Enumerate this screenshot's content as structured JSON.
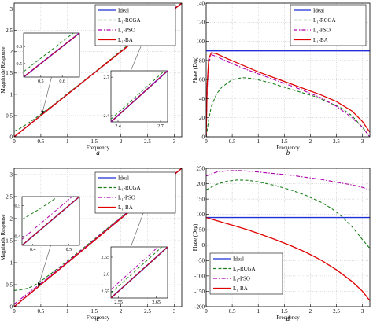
{
  "chart_data": [
    {
      "id": "a",
      "type": "line",
      "panel_label": "a",
      "xlabel": "Frequency",
      "ylabel": "Magnitude Response",
      "xlim": [
        0,
        3.1416
      ],
      "ylim": [
        0,
        3.1416
      ],
      "xticks": [
        0,
        0.5,
        1,
        1.5,
        2,
        2.5,
        3
      ],
      "xtick_labels": [
        "0",
        "0.5",
        "1",
        "1.5",
        "2",
        "2.5",
        "3"
      ],
      "yticks": [
        0,
        0.5,
        1,
        1.5,
        2,
        2.5,
        3
      ],
      "ytick_labels": [
        "0",
        "0.5",
        "1",
        "1.5",
        "2",
        "2.5",
        "3"
      ],
      "grid": true,
      "legend": {
        "position": "top-right",
        "entries": [
          {
            "label": "Ideal",
            "color": "#1f2fd6",
            "dash": "solid"
          },
          {
            "label": "L₁-RCGA",
            "color": "#1a7f1a",
            "dash": "dashed"
          },
          {
            "label": "L₁-PSO",
            "color": "#b000b0",
            "dash": "dashdot"
          },
          {
            "label": "L₁-BA",
            "color": "#e00000",
            "dash": "solid"
          }
        ]
      },
      "series": [
        {
          "name": "Ideal",
          "color": "#1f2fd6",
          "dash": "solid",
          "x": [
            0,
            3.1416
          ],
          "y": [
            0,
            3.1416
          ]
        },
        {
          "name": "L₁-RCGA",
          "color": "#1a7f1a",
          "dash": "dashed",
          "x": [
            0,
            0.1,
            0.3,
            0.5,
            0.8,
            1.2,
            1.6,
            2.0,
            2.4,
            2.8,
            3.0,
            3.1416
          ],
          "y": [
            0.13,
            0.19,
            0.35,
            0.53,
            0.82,
            1.21,
            1.61,
            2.02,
            2.42,
            2.81,
            3.02,
            3.13
          ]
        },
        {
          "name": "L₁-PSO",
          "color": "#b000b0",
          "dash": "dashdot",
          "x": [
            0,
            0.3,
            0.6,
            1.0,
            1.5,
            2.0,
            2.5,
            3.0,
            3.1416
          ],
          "y": [
            0,
            0.3,
            0.6,
            1.0,
            1.5,
            2.0,
            2.51,
            3.01,
            3.14
          ]
        },
        {
          "name": "L₁-BA",
          "color": "#e00000",
          "dash": "solid",
          "x": [
            0,
            3.1416
          ],
          "y": [
            0,
            3.1416
          ]
        }
      ],
      "insets": [
        {
          "xlim": [
            0.42,
            0.68
          ],
          "ylim": [
            0.42,
            0.68
          ],
          "xticks": [
            0.5,
            0.6
          ],
          "xtick_labels": [
            "0.5",
            "0.6"
          ],
          "yticks": [
            0.5,
            0.6
          ],
          "ytick_labels": [
            "0.5",
            "0.6"
          ],
          "rcga": {
            "x": [
              0.42,
              0.68
            ],
            "y": [
              0.452,
              0.708
            ]
          }
        },
        {
          "xlim": [
            2.35,
            2.75
          ],
          "ylim": [
            2.35,
            2.75
          ],
          "xticks": [
            2.4,
            2.7
          ],
          "xtick_labels": [
            "2.4",
            "2.7"
          ],
          "yticks": [
            2.4,
            2.7
          ],
          "ytick_labels": [
            "2.4",
            "2.7"
          ],
          "rcga": {
            "x": [
              2.35,
              2.75
            ],
            "y": [
              2.372,
              2.772
            ]
          }
        }
      ],
      "arrows": [
        {
          "from_inset": 0,
          "to": [
            0.52,
            0.52
          ]
        },
        {
          "from_inset": 1,
          "to": [
            2.5,
            2.5
          ]
        }
      ]
    },
    {
      "id": "b",
      "type": "line",
      "panel_label": "b",
      "xlabel": "Frequency",
      "ylabel": "Phase (Deg)",
      "xlim": [
        0,
        3.1416
      ],
      "ylim": [
        0,
        140
      ],
      "xticks": [
        0,
        0.5,
        1,
        1.5,
        2,
        2.5,
        3
      ],
      "xtick_labels": [
        "0",
        "0.5",
        "1",
        "1.5",
        "2",
        "2.5",
        "3"
      ],
      "yticks": [
        0,
        20,
        40,
        60,
        80,
        100,
        120,
        140
      ],
      "ytick_labels": [
        "0",
        "20",
        "40",
        "60",
        "80",
        "100",
        "120",
        "140"
      ],
      "grid": true,
      "legend": {
        "position": "top-right",
        "entries": [
          {
            "label": "Ideal",
            "color": "#1f2fd6",
            "dash": "solid"
          },
          {
            "label": "L₁-RCGA",
            "color": "#1a7f1a",
            "dash": "dashed"
          },
          {
            "label": "L₁-PSO",
            "color": "#b000b0",
            "dash": "dashdot"
          },
          {
            "label": "L₁-BA",
            "color": "#e00000",
            "dash": "solid"
          }
        ]
      },
      "series": [
        {
          "name": "Ideal",
          "color": "#1f2fd6",
          "dash": "solid",
          "x": [
            0,
            3.1416
          ],
          "y": [
            90,
            90
          ]
        },
        {
          "name": "L₁-RCGA",
          "color": "#1a7f1a",
          "dash": "dashed",
          "x": [
            0.0,
            0.05,
            0.1,
            0.2,
            0.3,
            0.5,
            0.7,
            0.9,
            1.2,
            1.5,
            1.8,
            2.1,
            2.4,
            2.6,
            2.8,
            3.0,
            3.14
          ],
          "y": [
            0,
            18,
            32,
            45,
            52,
            60,
            62,
            61,
            57,
            52,
            47,
            42,
            35,
            30,
            22,
            10,
            0
          ]
        },
        {
          "name": "L₁-PSO",
          "color": "#b000b0",
          "dash": "dashdot",
          "x": [
            0.0,
            0.02,
            0.05,
            0.1,
            0.2,
            0.4,
            0.7,
            1.0,
            1.4,
            1.8,
            2.2,
            2.5,
            2.8,
            3.0,
            3.14
          ],
          "y": [
            0,
            50,
            78,
            86,
            84,
            79,
            72,
            66,
            58,
            50,
            41,
            32,
            20,
            10,
            0
          ]
        },
        {
          "name": "L₁-BA",
          "color": "#e00000",
          "dash": "solid",
          "x": [
            0.0,
            0.02,
            0.05,
            0.1,
            0.2,
            0.4,
            0.7,
            1.0,
            1.4,
            1.8,
            2.2,
            2.5,
            2.8,
            3.0,
            3.14
          ],
          "y": [
            0,
            55,
            82,
            88,
            87,
            82,
            75,
            68,
            60,
            52,
            44,
            37,
            27,
            16,
            5
          ]
        }
      ]
    },
    {
      "id": "c",
      "type": "line",
      "panel_label": "c",
      "xlabel": "Frequency",
      "ylabel": "Magnitude Response",
      "xlim": [
        0,
        3.1416
      ],
      "ylim": [
        0,
        3.1416
      ],
      "xticks": [
        0,
        0.5,
        1,
        1.5,
        2,
        2.5,
        3
      ],
      "xtick_labels": [
        "0",
        "0.5",
        "1",
        "1.5",
        "2",
        "2.5",
        "3"
      ],
      "yticks": [
        0,
        0.5,
        1,
        1.5,
        2,
        2.5,
        3
      ],
      "ytick_labels": [
        "0",
        "0.5",
        "1",
        "1.5",
        "2",
        "2.5",
        "3"
      ],
      "grid": true,
      "legend": {
        "position": "top-right",
        "entries": [
          {
            "label": "Ideal",
            "color": "#1f2fd6",
            "dash": "solid"
          },
          {
            "label": "L₁-RCGA",
            "color": "#1a7f1a",
            "dash": "dashed"
          },
          {
            "label": "L₁-PSO",
            "color": "#b000b0",
            "dash": "dashdot"
          },
          {
            "label": "L₁-BA",
            "color": "#e00000",
            "dash": "solid"
          }
        ]
      },
      "series": [
        {
          "name": "Ideal",
          "color": "#1f2fd6",
          "dash": "solid",
          "x": [
            0,
            3.1416
          ],
          "y": [
            0,
            3.1416
          ]
        },
        {
          "name": "L₁-RCGA",
          "color": "#1a7f1a",
          "dash": "dashed",
          "x": [
            0,
            0.1,
            0.2,
            0.3,
            0.4,
            0.5,
            0.7,
            1.0,
            1.5,
            2.0,
            2.5,
            3.0,
            3.1416
          ],
          "y": [
            0.37,
            0.38,
            0.4,
            0.44,
            0.5,
            0.58,
            0.76,
            1.04,
            1.53,
            2.03,
            2.52,
            3.01,
            3.14
          ]
        },
        {
          "name": "L₁-PSO",
          "color": "#b000b0",
          "dash": "dashdot",
          "x": [
            0,
            0.5,
            1.0,
            1.5,
            2.0,
            2.5,
            3.0,
            3.1416
          ],
          "y": [
            0.06,
            0.53,
            1.02,
            1.52,
            2.02,
            2.52,
            3.01,
            3.14
          ]
        },
        {
          "name": "L₁-BA",
          "color": "#e00000",
          "dash": "solid",
          "x": [
            0,
            3.1416
          ],
          "y": [
            0,
            3.1416
          ]
        }
      ],
      "insets": [
        {
          "xlim": [
            0.37,
            0.53
          ],
          "ylim": [
            0.37,
            0.53
          ],
          "xticks": [
            0.4,
            0.5
          ],
          "xtick_labels": [
            "0.4",
            "0.5"
          ],
          "yticks": [
            0.4,
            0.5
          ],
          "ytick_labels": [
            "0.4",
            "0.5"
          ],
          "rcga": {
            "x": [
              0.37,
              0.42,
              0.47,
              0.53
            ],
            "y": [
              0.455,
              0.49,
              0.53,
              0.575
            ]
          },
          "pso": {
            "x": [
              0.37,
              0.53
            ],
            "y": [
              0.39,
              0.55
            ]
          }
        },
        {
          "xlim": [
            2.53,
            2.68
          ],
          "ylim": [
            2.53,
            2.68
          ],
          "xticks": [
            2.55,
            2.65
          ],
          "xtick_labels": [
            "2.55",
            "2.65"
          ],
          "yticks": [
            2.55,
            2.6,
            2.65
          ],
          "ytick_labels": [
            "2.55",
            "2.6",
            "2.65"
          ],
          "rcga": {
            "x": [
              2.53,
              2.68
            ],
            "y": [
              2.545,
              2.695
            ]
          },
          "pso": {
            "x": [
              2.53,
              2.68
            ],
            "y": [
              2.555,
              2.705
            ]
          }
        }
      ],
      "arrows": [
        {
          "from_inset": 0,
          "to": [
            0.45,
            0.45
          ]
        },
        {
          "from_inset": 1,
          "to": [
            2.55,
            2.55
          ]
        }
      ]
    },
    {
      "id": "d",
      "type": "line",
      "panel_label": "d",
      "xlabel": "Frequency",
      "ylabel": "Phase (Deg)",
      "xlim": [
        0,
        3.1416
      ],
      "ylim": [
        -200,
        250
      ],
      "xticks": [
        0,
        0.5,
        1,
        1.5,
        2,
        2.5,
        3
      ],
      "xtick_labels": [
        "0",
        "0.5",
        "1",
        "1.5",
        "2",
        "2.5",
        "3"
      ],
      "yticks": [
        -200,
        -150,
        -100,
        -50,
        0,
        50,
        100,
        150,
        200,
        250
      ],
      "ytick_labels": [
        "-200",
        "-150",
        "-100",
        "-50",
        "0",
        "50",
        "100",
        "150",
        "200",
        "250"
      ],
      "grid": true,
      "legend": {
        "position": "bottom-left",
        "entries": [
          {
            "label": "Ideal",
            "color": "#1f2fd6",
            "dash": "solid"
          },
          {
            "label": "L₁-RCGA",
            "color": "#1a7f1a",
            "dash": "dashed"
          },
          {
            "label": "L₁-PSO",
            "color": "#b000b0",
            "dash": "dashdot"
          },
          {
            "label": "L₁-BA",
            "color": "#e00000",
            "dash": "solid"
          }
        ]
      },
      "series": [
        {
          "name": "Ideal",
          "color": "#1f2fd6",
          "dash": "solid",
          "x": [
            0,
            3.1416
          ],
          "y": [
            90,
            90
          ]
        },
        {
          "name": "L₁-RCGA",
          "color": "#1a7f1a",
          "dash": "dashed",
          "x": [
            0,
            0.2,
            0.4,
            0.6,
            0.8,
            1.0,
            1.3,
            1.6,
            1.9,
            2.2,
            2.4,
            2.6,
            2.8,
            3.0,
            3.14
          ],
          "y": [
            180,
            198,
            208,
            212,
            211,
            206,
            195,
            181,
            163,
            140,
            120,
            94,
            60,
            18,
            -10
          ]
        },
        {
          "name": "L₁-PSO",
          "color": "#b000b0",
          "dash": "dashdot",
          "x": [
            0,
            0.2,
            0.4,
            0.6,
            0.8,
            1.0,
            1.3,
            1.6,
            1.9,
            2.2,
            2.5,
            2.8,
            3.0,
            3.14
          ],
          "y": [
            225,
            238,
            242,
            243,
            241,
            238,
            233,
            228,
            221,
            214,
            205,
            196,
            188,
            180
          ]
        },
        {
          "name": "L₁-BA",
          "color": "#e00000",
          "dash": "solid",
          "x": [
            0,
            0.2,
            0.4,
            0.6,
            0.8,
            1.0,
            1.3,
            1.6,
            1.9,
            2.2,
            2.5,
            2.8,
            3.0,
            3.14
          ],
          "y": [
            90,
            80,
            70,
            60,
            50,
            38,
            20,
            0,
            -22,
            -48,
            -80,
            -118,
            -150,
            -180
          ]
        }
      ]
    }
  ]
}
